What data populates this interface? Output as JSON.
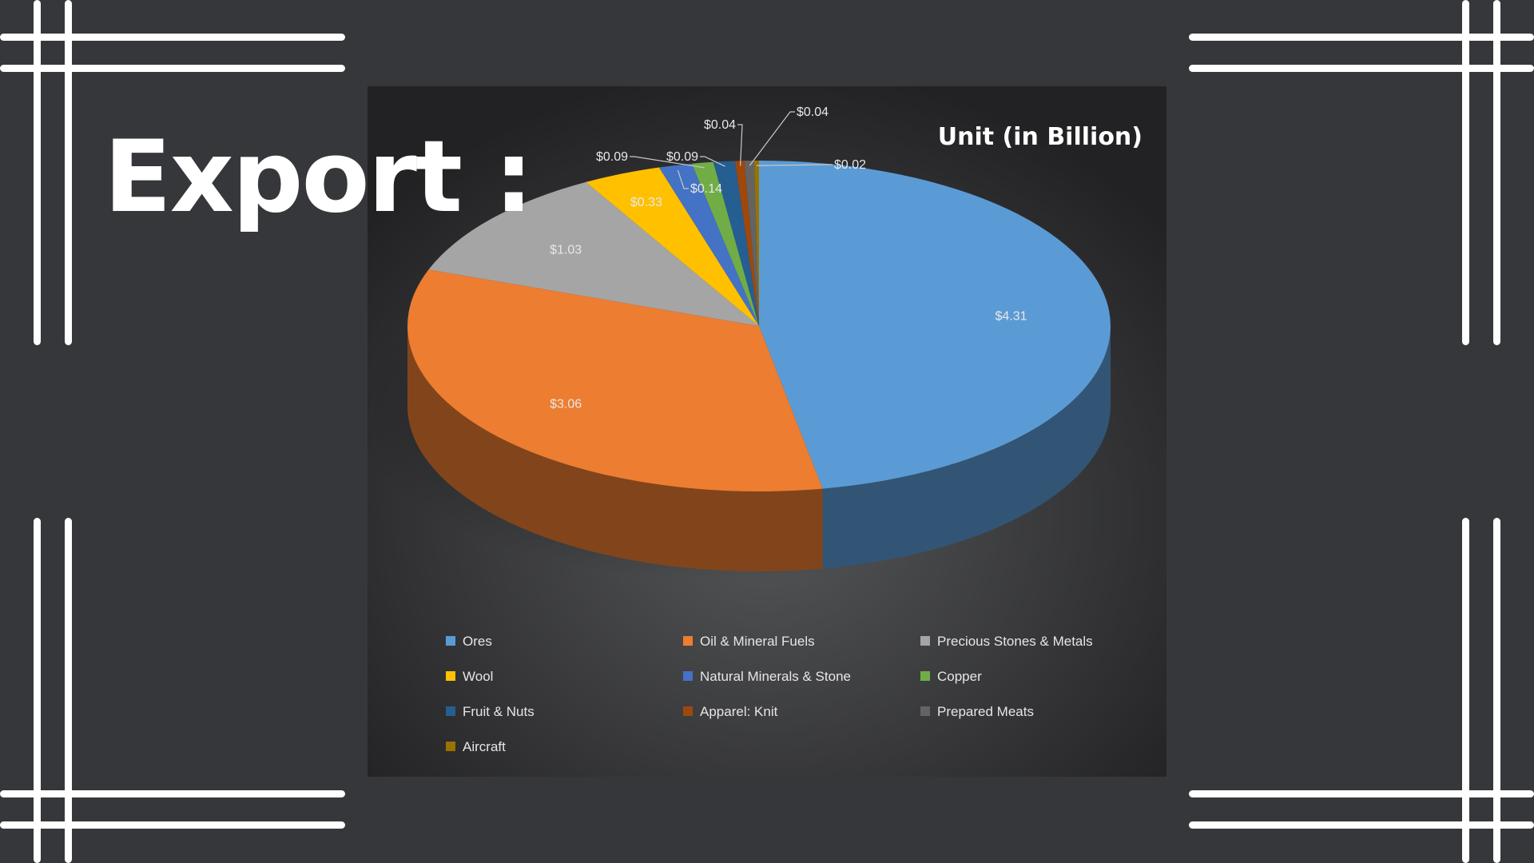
{
  "page": {
    "heading": "Export :",
    "background": "#36373a",
    "ornament_color": "#ffffff"
  },
  "chart_data": {
    "type": "pie",
    "style": "3d",
    "title": "Unit (in Billion)",
    "panel_background": "#2a2a2c",
    "legend_position": "bottom",
    "slices": [
      {
        "name": "Ores",
        "value": 4.31,
        "label": "$4.31",
        "color": "#5b9bd5"
      },
      {
        "name": "Oil & Mineral Fuels",
        "value": 3.06,
        "label": "$3.06",
        "color": "#ed7d31"
      },
      {
        "name": "Precious Stones & Metals",
        "value": 1.03,
        "label": "$1.03",
        "color": "#a5a5a5"
      },
      {
        "name": "Wool",
        "value": 0.33,
        "label": "$0.33",
        "color": "#ffc000"
      },
      {
        "name": "Natural Minerals & Stone",
        "value": 0.14,
        "label": "$0.14",
        "color": "#4472c4"
      },
      {
        "name": "Copper",
        "value": 0.09,
        "label": "$0.09",
        "color": "#70ad47"
      },
      {
        "name": "Fruit & Nuts",
        "value": 0.09,
        "label": "$0.09",
        "color": "#255e91"
      },
      {
        "name": "Apparel: Knit",
        "value": 0.04,
        "label": "$0.04",
        "color": "#9e480e"
      },
      {
        "name": "Prepared Meats",
        "value": 0.04,
        "label": "$0.04",
        "color": "#636363"
      },
      {
        "name": "Aircraft",
        "value": 0.02,
        "label": "$0.02",
        "color": "#997300"
      }
    ]
  }
}
